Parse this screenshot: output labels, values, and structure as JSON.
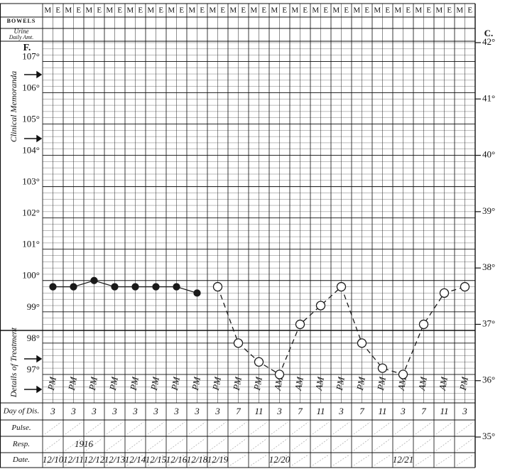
{
  "chart_data": {
    "type": "line",
    "shifts": [
      "M",
      "E"
    ],
    "header_labels": {
      "bowels": "BOWELS",
      "urine": [
        "Urine",
        "Daily Amt."
      ]
    },
    "y_unit": "F.",
    "y2_unit": "C.",
    "sections": [
      "Clinical Memoranda",
      "Details of Treatment"
    ],
    "row_labels": [
      "Day of Dis.",
      "Pulse.",
      "Resp.",
      "Date."
    ],
    "categories": [
      "12/10",
      "12/11",
      "12/12",
      "12/13",
      "12/14",
      "12/15",
      "12/16",
      "12/18",
      "12/19",
      null,
      null,
      "12/20",
      null,
      null,
      null,
      null,
      null,
      "12/21",
      null,
      null,
      null
    ],
    "periods": [
      "PM",
      "PM",
      "PM",
      "PM",
      "PM",
      "PM",
      "PM",
      "PM",
      "PM",
      "PM",
      "PM",
      "AM",
      "AM",
      "AM",
      "PM",
      "PM",
      "PM",
      "AM",
      "AM",
      "AM",
      "PM"
    ],
    "day_of_disease": [
      3,
      3,
      3,
      3,
      3,
      3,
      3,
      3,
      3,
      7,
      11,
      3,
      7,
      11,
      3,
      7,
      11,
      3,
      7,
      11,
      3
    ],
    "resp_note": "1916",
    "series": [
      {
        "color": "#1a1a1a",
        "marker": "filled",
        "dashed": false,
        "values": [
          99.8,
          99.8,
          100.0,
          99.8,
          99.8,
          99.8,
          99.8,
          99.6,
          null,
          null,
          null,
          null,
          null,
          null,
          null,
          null,
          null,
          null,
          null,
          null,
          null
        ]
      },
      {
        "color": "#1a1a1a",
        "marker": "open",
        "dashed": true,
        "values": [
          null,
          null,
          null,
          null,
          null,
          null,
          null,
          null,
          99.8,
          98.0,
          97.4,
          97.0,
          98.6,
          99.2,
          99.8,
          98.0,
          97.2,
          97.0,
          98.6,
          99.6,
          99.8
        ]
      }
    ],
    "ylim": [
      95,
      107.6
    ],
    "yticks": [
      {
        "value": 97,
        "label": "97°"
      },
      {
        "value": 98,
        "label": "98°"
      },
      {
        "value": 99,
        "label": "99°"
      },
      {
        "value": 100,
        "label": "100°"
      },
      {
        "value": 101,
        "label": "101°"
      },
      {
        "value": 102,
        "label": "102°"
      },
      {
        "value": 103,
        "label": "103°"
      },
      {
        "value": 104,
        "label": "104°"
      },
      {
        "value": 105,
        "label": "105°"
      },
      {
        "value": 106,
        "label": "106°"
      },
      {
        "value": 107,
        "label": "107°"
      }
    ],
    "y2lim": [
      35,
      42
    ],
    "y2ticks": [
      {
        "value": 35,
        "label": "35°"
      },
      {
        "value": 36,
        "label": "36°"
      },
      {
        "value": 37,
        "label": "37°"
      },
      {
        "value": 38,
        "label": "38°"
      },
      {
        "value": 39,
        "label": "39°"
      },
      {
        "value": 40,
        "label": "40°"
      },
      {
        "value": 41,
        "label": "41°"
      },
      {
        "value": 42,
        "label": "42°"
      }
    ],
    "minor_step": 0.2,
    "grid": true
  }
}
